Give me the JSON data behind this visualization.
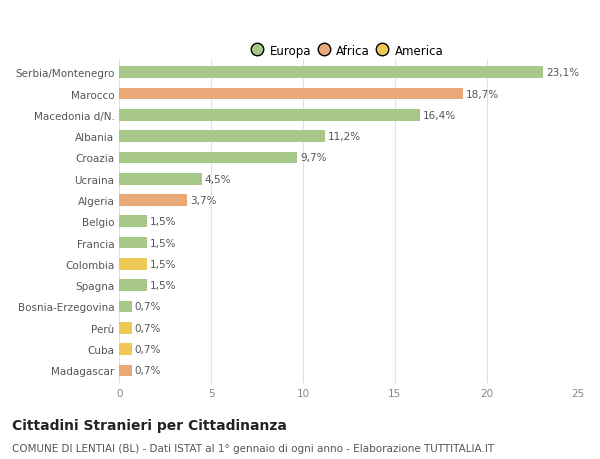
{
  "categories": [
    "Serbia/Montenegro",
    "Marocco",
    "Macedonia d/N.",
    "Albania",
    "Croazia",
    "Ucraina",
    "Algeria",
    "Belgio",
    "Francia",
    "Colombia",
    "Spagna",
    "Bosnia-Erzegovina",
    "Perù",
    "Cuba",
    "Madagascar"
  ],
  "values": [
    23.1,
    18.7,
    16.4,
    11.2,
    9.7,
    4.5,
    3.7,
    1.5,
    1.5,
    1.5,
    1.5,
    0.7,
    0.7,
    0.7,
    0.7
  ],
  "continents": [
    "Europa",
    "Africa",
    "Europa",
    "Europa",
    "Europa",
    "Europa",
    "Africa",
    "Europa",
    "Europa",
    "America",
    "Europa",
    "Europa",
    "America",
    "America",
    "Africa"
  ],
  "colors": {
    "Europa": "#a8c88a",
    "Africa": "#e8a878",
    "America": "#f0c855"
  },
  "legend_items": [
    "Europa",
    "Africa",
    "America"
  ],
  "legend_colors": [
    "#a8c88a",
    "#e8a878",
    "#f0c855"
  ],
  "xlim": [
    0,
    25
  ],
  "xticks": [
    0,
    5,
    10,
    15,
    20,
    25
  ],
  "title": "Cittadini Stranieri per Cittadinanza",
  "subtitle": "COMUNE DI LENTIAI (BL) - Dati ISTAT al 1° gennaio di ogni anno - Elaborazione TUTTITALIA.IT",
  "background_color": "#ffffff",
  "bar_height": 0.55,
  "grid_color": "#e0e0e0",
  "label_fontsize": 7.5,
  "value_fontsize": 7.5,
  "title_fontsize": 10,
  "subtitle_fontsize": 7.5,
  "tick_fontsize": 7.5,
  "legend_fontsize": 8.5
}
